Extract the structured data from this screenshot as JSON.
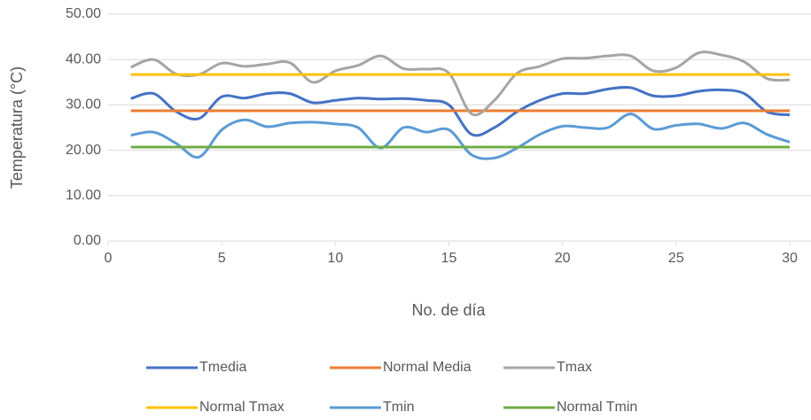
{
  "chart_data": {
    "type": "line",
    "smooth": true,
    "x_label": "No. de día",
    "y_label": "Temperatura (°C)",
    "x": [
      1,
      2,
      3,
      4,
      5,
      6,
      7,
      8,
      9,
      10,
      11,
      12,
      13,
      14,
      15,
      16,
      17,
      18,
      19,
      20,
      21,
      22,
      23,
      24,
      25,
      26,
      27,
      28,
      29,
      30
    ],
    "xlim": [
      0,
      31
    ],
    "xticks": [
      0,
      5,
      10,
      15,
      20,
      25,
      30
    ],
    "ylim": [
      0,
      50
    ],
    "yticks": [
      {
        "value": 0,
        "label": "0.00"
      },
      {
        "value": 10,
        "label": "10.00"
      },
      {
        "value": 20,
        "label": "20.00"
      },
      {
        "value": 30,
        "label": "30.00"
      },
      {
        "value": 40,
        "label": "40.00"
      },
      {
        "value": 50,
        "label": "50.00"
      }
    ],
    "grid": true,
    "legend": "bottom",
    "series": [
      {
        "name": "Tmedia",
        "color": "#4472c4",
        "values": [
          31.4,
          32.5,
          28.5,
          27.0,
          31.8,
          31.5,
          32.5,
          32.5,
          30.5,
          31.0,
          31.5,
          31.3,
          31.4,
          31.0,
          30.0,
          23.5,
          25.0,
          28.5,
          31.0,
          32.5,
          32.5,
          33.5,
          33.8,
          32.0,
          32.0,
          33.0,
          33.3,
          32.5,
          28.5,
          27.8
        ]
      },
      {
        "name": "Normal Media",
        "color": "#ed7d31",
        "values": [
          28.7,
          28.7,
          28.7,
          28.7,
          28.7,
          28.7,
          28.7,
          28.7,
          28.7,
          28.7,
          28.7,
          28.7,
          28.7,
          28.7,
          28.7,
          28.7,
          28.7,
          28.7,
          28.7,
          28.7,
          28.7,
          28.7,
          28.7,
          28.7,
          28.7,
          28.7,
          28.7,
          28.7,
          28.7,
          28.7
        ]
      },
      {
        "name": "Tmax",
        "color": "#a5a5a5",
        "values": [
          38.3,
          40.0,
          36.8,
          36.7,
          39.2,
          38.5,
          39.0,
          39.3,
          35.0,
          37.5,
          38.7,
          40.8,
          38.0,
          37.9,
          37.0,
          28.0,
          31.0,
          37.0,
          38.5,
          40.2,
          40.3,
          40.8,
          40.8,
          37.5,
          38.2,
          41.5,
          41.0,
          39.5,
          35.8,
          35.5
        ]
      },
      {
        "name": "Normal Tmax",
        "color": "#ffc000",
        "values": [
          36.7,
          36.7,
          36.7,
          36.7,
          36.7,
          36.7,
          36.7,
          36.7,
          36.7,
          36.7,
          36.7,
          36.7,
          36.7,
          36.7,
          36.7,
          36.7,
          36.7,
          36.7,
          36.7,
          36.7,
          36.7,
          36.7,
          36.7,
          36.7,
          36.7,
          36.7,
          36.7,
          36.7,
          36.7,
          36.7
        ]
      },
      {
        "name": "Tmin",
        "color": "#5b9bd5",
        "values": [
          23.3,
          24.0,
          21.5,
          18.5,
          24.5,
          26.7,
          25.2,
          26.0,
          26.2,
          25.8,
          25.0,
          20.5,
          25.0,
          24.0,
          24.5,
          19.0,
          18.3,
          20.5,
          23.5,
          25.3,
          25.0,
          25.0,
          28.0,
          24.7,
          25.5,
          25.8,
          24.8,
          26.0,
          23.5,
          21.8
        ]
      },
      {
        "name": "Normal Tmin",
        "color": "#70ad47",
        "values": [
          20.7,
          20.7,
          20.7,
          20.7,
          20.7,
          20.7,
          20.7,
          20.7,
          20.7,
          20.7,
          20.7,
          20.7,
          20.7,
          20.7,
          20.7,
          20.7,
          20.7,
          20.7,
          20.7,
          20.7,
          20.7,
          20.7,
          20.7,
          20.7,
          20.7,
          20.7,
          20.7,
          20.7,
          20.7,
          20.7
        ]
      }
    ]
  }
}
